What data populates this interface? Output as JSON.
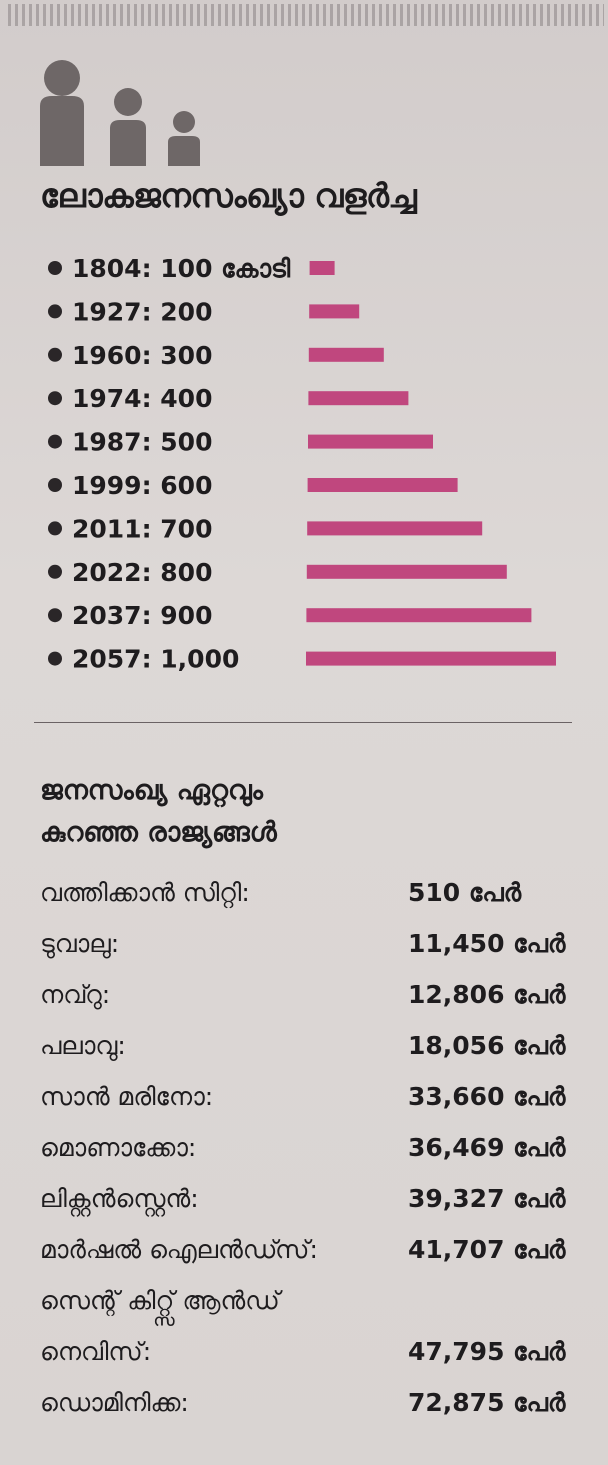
{
  "chart_data": {
    "type": "bar",
    "title": "ലോകജനസംഖ്യാ വളർച്ച",
    "orientation": "horizontal",
    "unit_label": "കോടി",
    "bar_color": "#c0477e",
    "categories": [
      "1804",
      "1927",
      "1960",
      "1974",
      "1987",
      "1999",
      "2011",
      "2022",
      "2037",
      "2057"
    ],
    "values": [
      100,
      200,
      300,
      400,
      500,
      600,
      700,
      800,
      900,
      1000
    ],
    "labels": [
      "1804: 100 കോടി",
      "1927: 200",
      "1960: 300",
      "1974: 400",
      "1987: 500",
      "1999: 600",
      "2011: 700",
      "2022: 800",
      "2037: 900",
      "2057: 1,000"
    ],
    "xlim": [
      0,
      1000
    ],
    "grid": false,
    "legend": "none"
  },
  "least_populated": {
    "title_line1": "ജനസംഖ്യ ഏറ്റവും",
    "title_line2": "കുറഞ്ഞ രാജ്യങ്ങൾ",
    "countries": [
      {
        "name": "വത്തിക്കാൻ സിറ്റി:",
        "value": "510 പേർ"
      },
      {
        "name": "ടുവാലു:",
        "value": "11,450 പേർ"
      },
      {
        "name": "നവ്റു:",
        "value": "12,806 പേർ"
      },
      {
        "name": "പലാവു:",
        "value": "18,056 പേർ"
      },
      {
        "name": "സാൻ മരിനോ:",
        "value": "33,660 പേർ"
      },
      {
        "name": "മൊണാക്കോ:",
        "value": "36,469 പേർ"
      },
      {
        "name": "ലിക്റ്റൻസ്റ്റെൻ:",
        "value": "39,327 പേർ"
      },
      {
        "name": "മാർഷൽ ഐലൻഡ്സ്:",
        "value": "41,707 പേർ"
      },
      {
        "name": "ഡൊമിനിക്ക:",
        "value": "72,875 പേർ"
      }
    ],
    "two_line_country": {
      "name_line1": "സെന്റ് കിറ്റ്സ് ആൻഡ്",
      "name_line2": "നെവിസ്:",
      "value": "47,795 പേർ"
    }
  }
}
